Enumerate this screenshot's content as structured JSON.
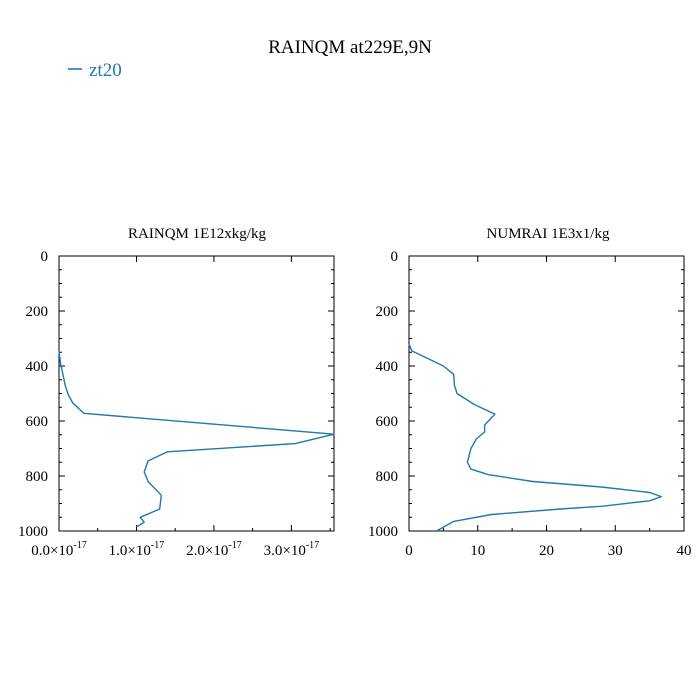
{
  "figure": {
    "title": "RAINQM at229E,9N",
    "legend": {
      "label": "zt20",
      "color": "#1f77b4"
    }
  },
  "chart_data": [
    {
      "type": "line",
      "title": "RAINQM  1E12xkg/kg",
      "xlabel": "",
      "ylabel": "",
      "xlim": [
        0,
        3.55e-17
      ],
      "ylim": [
        1000,
        0
      ],
      "grid": false,
      "x_ticks": [
        {
          "mantissa": "0.0",
          "value": 0
        },
        {
          "mantissa": "1.0",
          "value": 1e-17
        },
        {
          "mantissa": "2.0",
          "value": 2e-17
        },
        {
          "mantissa": "3.0",
          "value": 3e-17
        }
      ],
      "x_tick_suffix": "×10",
      "x_tick_exponent": "-17",
      "y_ticks": [
        "0",
        "200",
        "400",
        "600",
        "800",
        "1000"
      ],
      "series": [
        {
          "name": "zt20",
          "color": "#1f77b4",
          "points": [
            [
              0.0,
              345
            ],
            [
              2e-19,
              390
            ],
            [
              5e-19,
              430
            ],
            [
              8e-19,
              470
            ],
            [
              1.2e-18,
              505
            ],
            [
              1.8e-18,
              535
            ],
            [
              3.2e-18,
              572
            ],
            [
              3.55e-17,
              648
            ],
            [
              3.05e-17,
              682
            ],
            [
              1.4e-17,
              712
            ],
            [
              1.15e-17,
              745
            ],
            [
              1.1e-17,
              785
            ],
            [
              1.15e-17,
              820
            ],
            [
              1.32e-17,
              870
            ],
            [
              1.3e-17,
              920
            ],
            [
              1.05e-17,
              950
            ],
            [
              1.1e-17,
              968
            ],
            [
              1e-17,
              985
            ]
          ]
        }
      ]
    },
    {
      "type": "line",
      "title": "NUMRAI  1E3x1/kg",
      "xlabel": "",
      "ylabel": "",
      "xlim": [
        0,
        40
      ],
      "ylim": [
        1000,
        0
      ],
      "grid": false,
      "x_ticks": [
        "0",
        "10",
        "20",
        "30",
        "40"
      ],
      "y_ticks": [
        "0",
        "200",
        "400",
        "600",
        "800",
        "1000"
      ],
      "series": [
        {
          "name": "zt20",
          "color": "#1f77b4",
          "points": [
            [
              0.0,
              320
            ],
            [
              0.4,
              345
            ],
            [
              2.5,
              370
            ],
            [
              5.0,
              400
            ],
            [
              6.5,
              430
            ],
            [
              6.6,
              470
            ],
            [
              7.0,
              500
            ],
            [
              9.5,
              540
            ],
            [
              12.5,
              575
            ],
            [
              11.0,
              615
            ],
            [
              11.0,
              640
            ],
            [
              9.8,
              665
            ],
            [
              9.0,
              700
            ],
            [
              8.5,
              750
            ],
            [
              9.0,
              775
            ],
            [
              11.5,
              795
            ],
            [
              18.0,
              820
            ],
            [
              28.0,
              840
            ],
            [
              35.0,
              860
            ],
            [
              36.7,
              875
            ],
            [
              35.0,
              890
            ],
            [
              28.0,
              910
            ],
            [
              22.0,
              920
            ],
            [
              12.0,
              940
            ],
            [
              6.5,
              965
            ],
            [
              4.0,
              1000
            ]
          ]
        }
      ]
    }
  ]
}
